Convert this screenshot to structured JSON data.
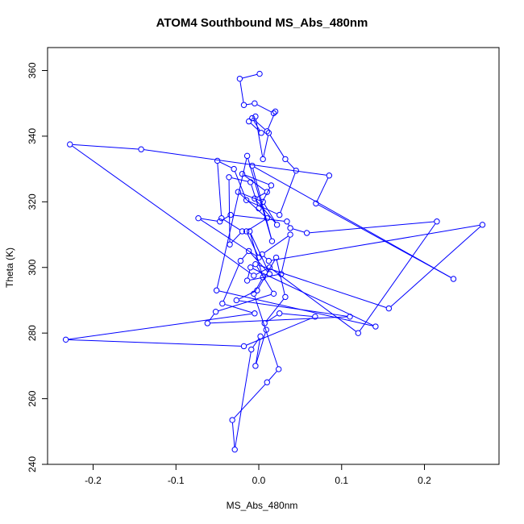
{
  "chart_data": {
    "type": "scatter",
    "title": "ATOM4 Southbound MS_Abs_480nm",
    "xlabel": "MS_Abs_480nm",
    "ylabel": "Theta (K)",
    "xlim": [
      -0.255,
      0.29
    ],
    "ylim": [
      240,
      367
    ],
    "xticks": [
      -0.2,
      -0.1,
      0.0,
      0.1,
      0.2
    ],
    "xtick_labels": [
      "-0.2",
      "-0.1",
      "0.0",
      "0.1",
      "0.2"
    ],
    "yticks": [
      240,
      260,
      280,
      300,
      320,
      340,
      360
    ],
    "ytick_labels": [
      "240",
      "260",
      "280",
      "300",
      "320",
      "340",
      "360"
    ],
    "grid": false,
    "series": [
      {
        "color": "#0000ff",
        "marker": "open-circle",
        "connected": true,
        "x": [
          0.001,
          -0.023,
          -0.018,
          -0.005,
          0.018,
          0.02,
          0.01,
          -0.008,
          0.003,
          -0.012,
          -0.004,
          0.005,
          0.012,
          0.032,
          0.045,
          0.025,
          -0.015,
          -0.03,
          -0.05,
          -0.045,
          -0.02,
          -0.035,
          -0.036,
          -0.01,
          0.0,
          0.015,
          -0.02,
          0.01,
          -0.005,
          0.022,
          0.005,
          -0.025,
          0.01,
          -0.015,
          0.0,
          -0.073,
          -0.047,
          -0.034,
          0.034,
          0.038,
          0.058,
          0.215,
          0.12,
          0.013,
          -0.006,
          -0.228,
          -0.142,
          0.085,
          0.069,
          0.235,
          -0.008,
          0.016,
          -0.014,
          -0.051,
          0.141,
          -0.01,
          -0.014,
          0.027,
          0.038,
          0.004,
          0.012,
          0.27,
          0.157,
          -0.004,
          0.018,
          -0.052,
          -0.062,
          0.11,
          -0.027,
          -0.002,
          0.021,
          0.032,
          0.007,
          0.025,
          0.068,
          -0.018,
          -0.233,
          -0.005,
          -0.044,
          -0.022,
          -0.012,
          0.013,
          -0.011,
          0.005,
          -0.006,
          0.024,
          0.01,
          -0.032,
          -0.029,
          -0.009,
          0.002,
          -0.004,
          0.009
        ],
        "y": [
          359,
          357.5,
          349.5,
          350,
          347,
          347.5,
          341.5,
          345.5,
          341,
          344.5,
          346,
          333,
          341,
          333,
          329.5,
          316,
          320.5,
          330,
          332.5,
          315,
          311,
          307,
          327.5,
          326,
          318,
          325,
          328.5,
          323,
          321,
          313,
          320,
          323,
          315,
          311,
          303,
          315,
          314,
          316,
          314,
          312,
          310.5,
          314,
          280,
          300,
          297.5,
          337.5,
          336,
          328,
          319.5,
          296.5,
          331,
          308,
          334,
          293,
          282,
          300,
          296,
          298,
          310,
          304,
          302,
          313,
          287.5,
          301,
          292,
          286.5,
          283,
          285,
          290,
          293,
          303,
          291,
          283,
          286,
          285,
          276,
          278,
          286,
          289,
          302,
          305,
          298,
          311,
          297,
          292,
          269,
          265,
          253.5,
          244.5,
          275,
          279,
          270,
          281
        ]
      }
    ]
  }
}
